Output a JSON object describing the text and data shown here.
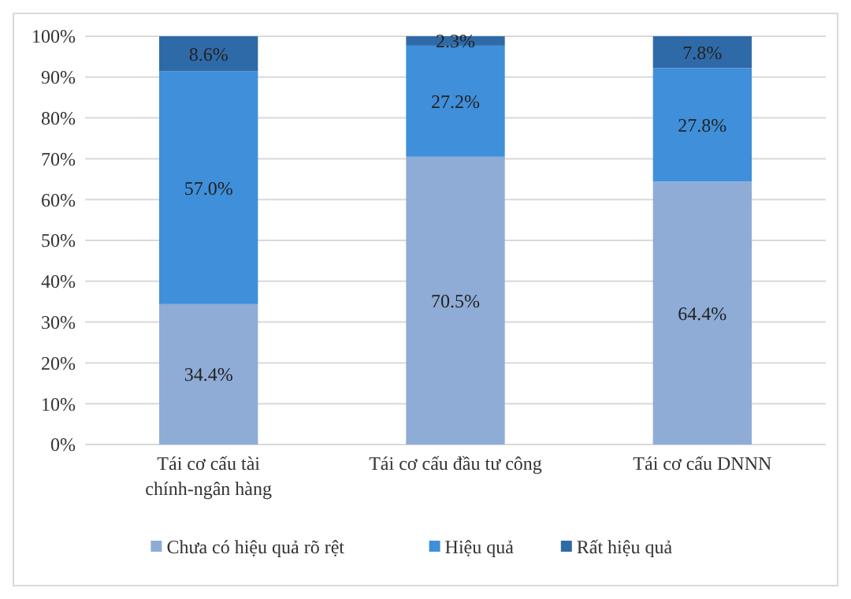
{
  "chart_data": {
    "type": "bar",
    "stacked": true,
    "categories": [
      "Tái cơ cấu tài chính-ngân hàng",
      "Tái cơ cấu đầu tư công",
      "Tái cơ cấu DNNN"
    ],
    "series": [
      {
        "name": "Chưa có hiệu quả rõ rệt",
        "color": "#8eacd6",
        "values": [
          34.4,
          70.5,
          64.4
        ],
        "value_labels": [
          "34.4%",
          "70.5%",
          "64.4%"
        ]
      },
      {
        "name": "Hiệu quả",
        "color": "#3f8fdb",
        "values": [
          57.0,
          27.2,
          27.8
        ],
        "value_labels": [
          "57.0%",
          "27.2%",
          "27.8%"
        ]
      },
      {
        "name": "Rất hiệu quả",
        "color": "#2f6aa8",
        "values": [
          8.6,
          2.3,
          7.8
        ],
        "value_labels": [
          "8.6%",
          "2.3%",
          "7.8%"
        ]
      }
    ],
    "ylim": [
      0,
      100
    ],
    "yticks": [
      {
        "value": 0,
        "label": "0%"
      },
      {
        "value": 10,
        "label": "10%"
      },
      {
        "value": 20,
        "label": "20%"
      },
      {
        "value": 30,
        "label": "30%"
      },
      {
        "value": 40,
        "label": "40%"
      },
      {
        "value": 50,
        "label": "50%"
      },
      {
        "value": 60,
        "label": "60%"
      },
      {
        "value": 70,
        "label": "70%"
      },
      {
        "value": 80,
        "label": "80%"
      },
      {
        "value": 90,
        "label": "90%"
      },
      {
        "value": 100,
        "label": "100%"
      }
    ],
    "grid": "y",
    "legend": "bottom"
  }
}
